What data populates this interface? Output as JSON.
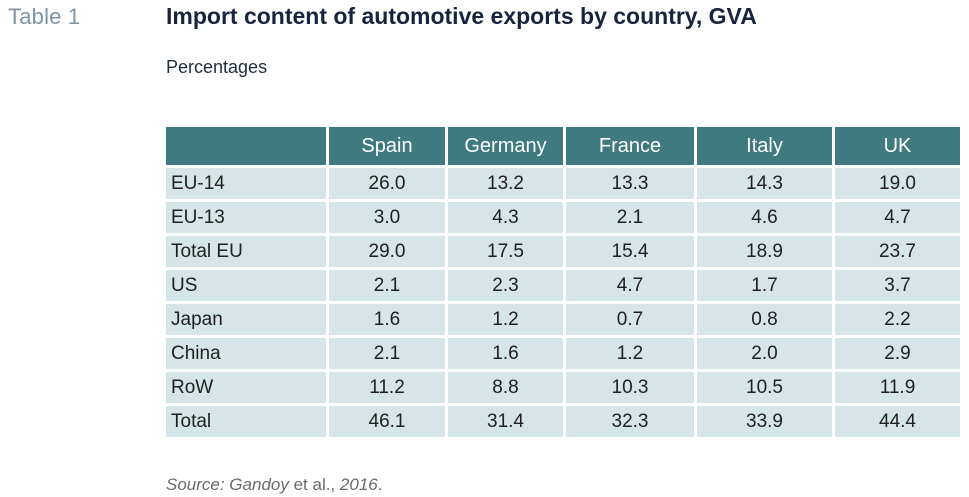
{
  "header": {
    "table_label": "Table 1",
    "title": "Import content of automotive exports by country, GVA",
    "subtitle": "Percentages"
  },
  "table": {
    "columns": [
      "",
      "Spain",
      "Germany",
      "France",
      "Italy",
      "UK"
    ],
    "rows": [
      {
        "label": "EU-14",
        "values": [
          "26.0",
          "13.2",
          "13.3",
          "14.3",
          "19.0"
        ]
      },
      {
        "label": "EU-13",
        "values": [
          "3.0",
          "4.3",
          "2.1",
          "4.6",
          "4.7"
        ]
      },
      {
        "label": "Total EU",
        "values": [
          "29.0",
          "17.5",
          "15.4",
          "18.9",
          "23.7"
        ]
      },
      {
        "label": "US",
        "values": [
          "2.1",
          "2.3",
          "4.7",
          "1.7",
          "3.7"
        ]
      },
      {
        "label": "Japan",
        "values": [
          "1.6",
          "1.2",
          "0.7",
          "0.8",
          "2.2"
        ]
      },
      {
        "label": "China",
        "values": [
          "2.1",
          "1.6",
          "1.2",
          "2.0",
          "2.9"
        ]
      },
      {
        "label": "RoW",
        "values": [
          "11.2",
          "8.8",
          "10.3",
          "10.5",
          "11.9"
        ]
      },
      {
        "label": "Total",
        "values": [
          "46.1",
          "31.4",
          "32.3",
          "33.9",
          "44.4"
        ]
      }
    ]
  },
  "footer": {
    "source_prefix": "Source: Gandoy",
    "source_middle": " et al.",
    "source_sep": ", ",
    "source_year": "2016",
    "source_end": "."
  }
}
